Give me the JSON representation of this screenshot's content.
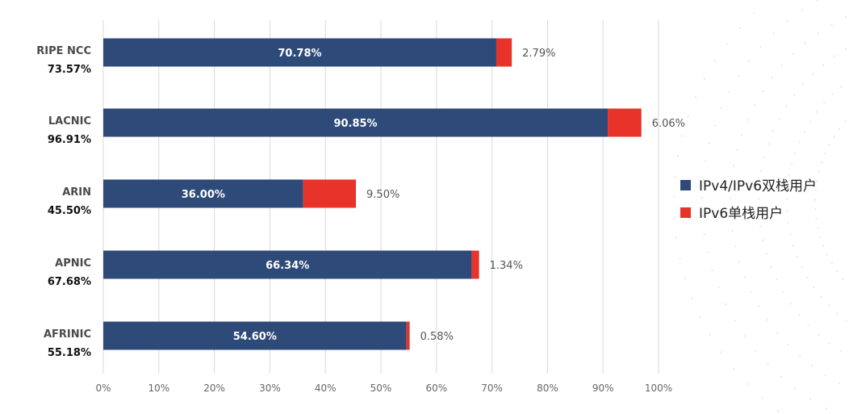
{
  "chart_data": {
    "type": "bar",
    "orientation": "horizontal",
    "stacked": true,
    "categories": [
      "RIPE NCC",
      "LACNIC",
      "ARIN",
      "APNIC",
      "AFRINIC"
    ],
    "totals": [
      "73.57%",
      "96.91%",
      "45.50%",
      "67.68%",
      "55.18%"
    ],
    "series": [
      {
        "name": "IPv4/IPv6双栈用户",
        "color": "#2e4a78",
        "values": [
          70.78,
          90.85,
          36.0,
          66.34,
          54.6
        ],
        "labels": [
          "70.78%",
          "90.85%",
          "36.00%",
          "66.34%",
          "54.60%"
        ]
      },
      {
        "name": "IPv6单栈用户",
        "color": "#e8332a",
        "values": [
          2.79,
          6.06,
          9.5,
          1.34,
          0.58
        ],
        "labels": [
          "2.79%",
          "6.06%",
          "9.50%",
          "1.34%",
          "0.58%"
        ]
      }
    ],
    "xlim": [
      0,
      100
    ],
    "xticks": [
      "0%",
      "10%",
      "20%",
      "30%",
      "40%",
      "50%",
      "60%",
      "70%",
      "80%",
      "90%",
      "100%"
    ],
    "grid": true,
    "legend_position": "right"
  }
}
